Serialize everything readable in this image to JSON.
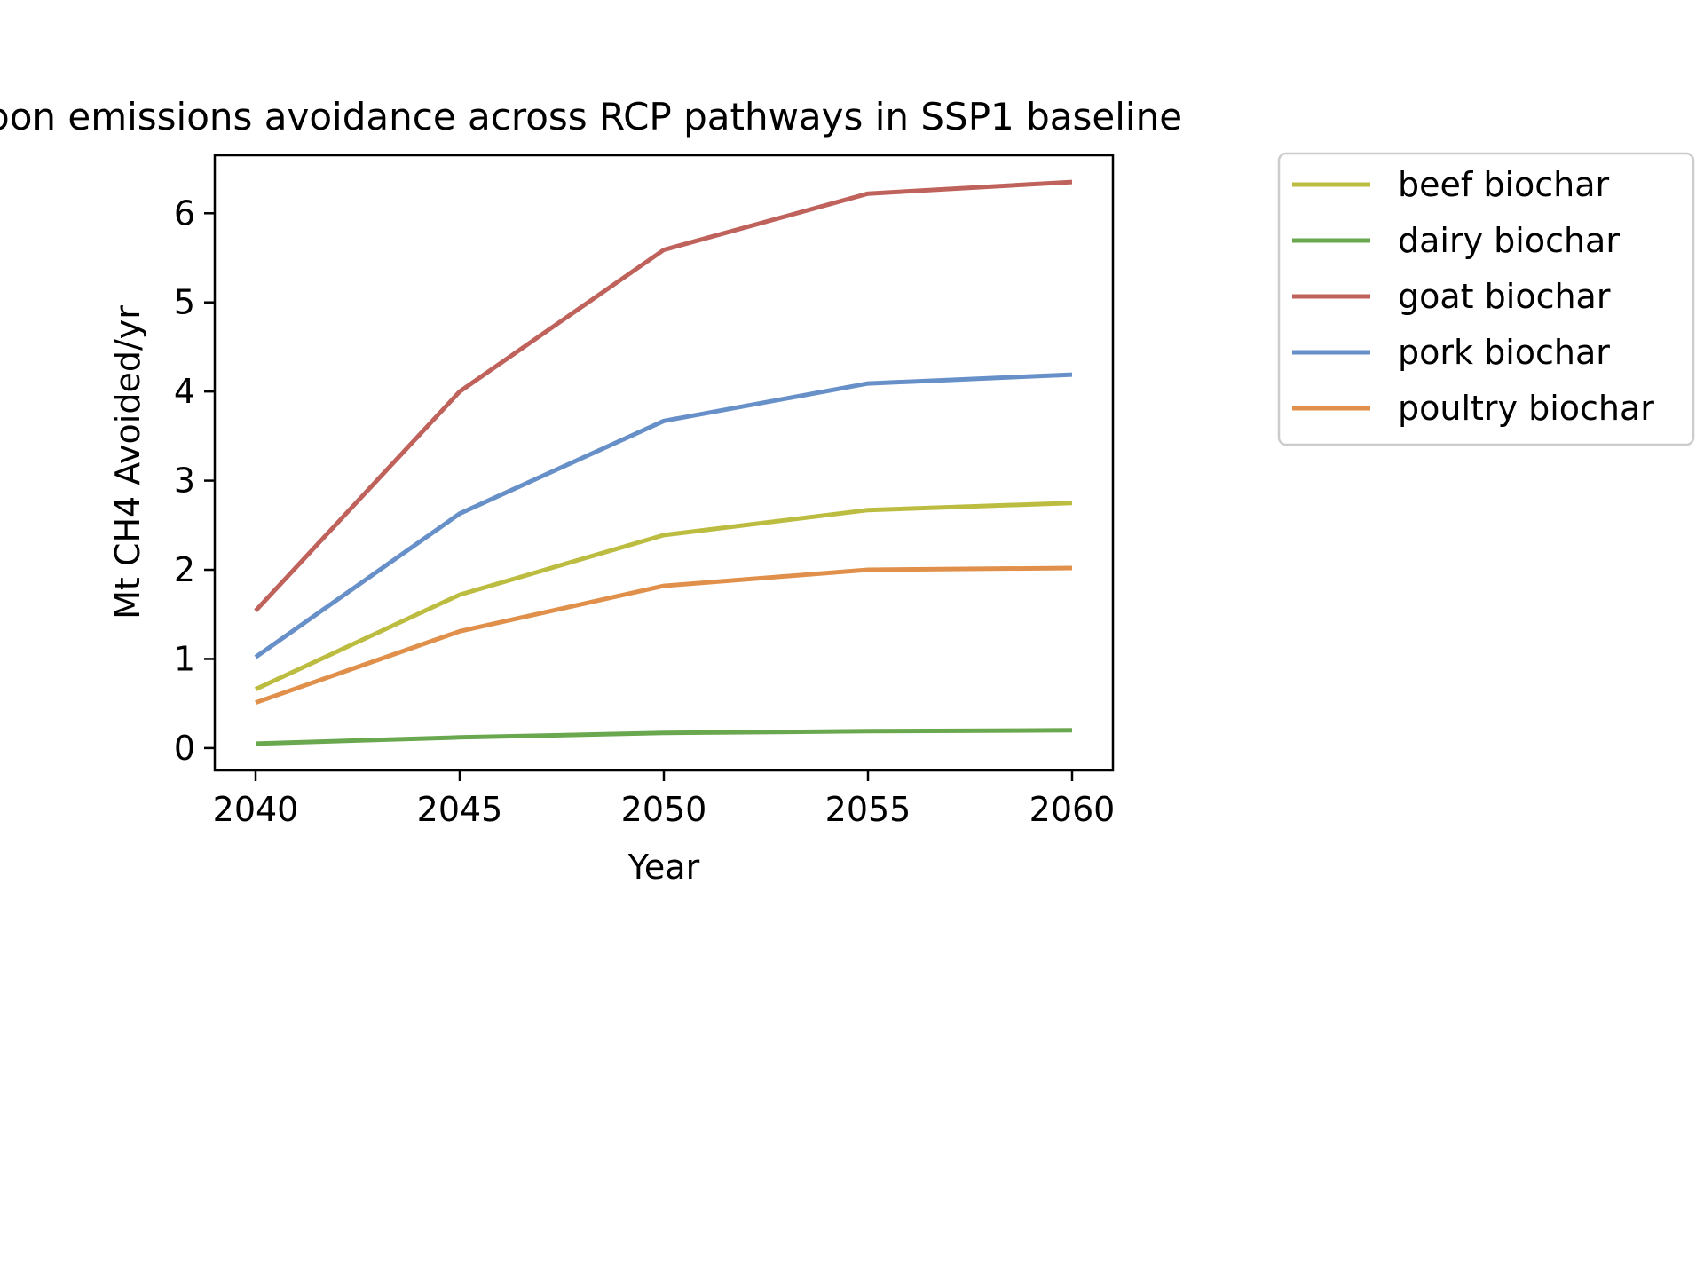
{
  "chart_data": {
    "type": "line",
    "title": "oon emissions avoidance across RCP pathways in SSP1 baseline",
    "xlabel": "Year",
    "ylabel": "Mt CH4 Avoided/yr",
    "x": [
      2040,
      2045,
      2050,
      2055,
      2060
    ],
    "x_ticks": [
      2040,
      2045,
      2050,
      2055,
      2060
    ],
    "y_ticks": [
      0,
      1,
      2,
      3,
      4,
      5,
      6
    ],
    "xlim": [
      2039,
      2061
    ],
    "ylim": [
      -0.25,
      6.65
    ],
    "grid": false,
    "legend_position": "outside-right",
    "series": [
      {
        "name": "beef biochar",
        "color": "#bcbd40",
        "values": [
          0.66,
          1.72,
          2.39,
          2.67,
          2.75
        ]
      },
      {
        "name": "dairy biochar",
        "color": "#6aa84f",
        "values": [
          0.05,
          0.12,
          0.17,
          0.19,
          0.2
        ]
      },
      {
        "name": "goat biochar",
        "color": "#c0625c",
        "values": [
          1.54,
          4.0,
          5.59,
          6.22,
          6.35
        ]
      },
      {
        "name": "pork biochar",
        "color": "#6890c8",
        "values": [
          1.02,
          2.63,
          3.67,
          4.09,
          4.19
        ]
      },
      {
        "name": "poultry biochar",
        "color": "#e0904a",
        "values": [
          0.51,
          1.31,
          1.82,
          2.0,
          2.02
        ]
      }
    ]
  }
}
